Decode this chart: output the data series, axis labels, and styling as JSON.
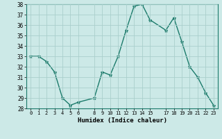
{
  "x": [
    0,
    1,
    2,
    3,
    4,
    5,
    6,
    8,
    9,
    10,
    11,
    12,
    13,
    14,
    15,
    17,
    18,
    19,
    20,
    21,
    22,
    23
  ],
  "y": [
    33.0,
    33.0,
    32.5,
    31.5,
    29.0,
    28.3,
    28.6,
    29.0,
    31.5,
    31.2,
    33.0,
    35.5,
    37.8,
    38.0,
    36.5,
    35.5,
    36.7,
    34.4,
    32.0,
    31.0,
    29.5,
    28.3
  ],
  "line_color": "#1a7a6a",
  "marker": "*",
  "marker_size": 3.5,
  "bg_color": "#cce9e7",
  "grid_color": "#aacfcc",
  "xlabel": "Humidex (Indice chaleur)",
  "ylim": [
    28,
    38
  ],
  "xlim": [
    -0.5,
    23.5
  ],
  "yticks": [
    28,
    29,
    30,
    31,
    32,
    33,
    34,
    35,
    36,
    37,
    38
  ],
  "xticks": [
    0,
    1,
    2,
    3,
    4,
    5,
    6,
    8,
    9,
    10,
    11,
    12,
    13,
    14,
    15,
    17,
    18,
    19,
    20,
    21,
    22,
    23
  ],
  "xtick_labels": [
    "0",
    "1",
    "2",
    "3",
    "4",
    "5",
    "6",
    "8",
    "9",
    "10",
    "11",
    "12",
    "13",
    "14",
    "15",
    "17",
    "18",
    "19",
    "20",
    "21",
    "22",
    "23"
  ]
}
